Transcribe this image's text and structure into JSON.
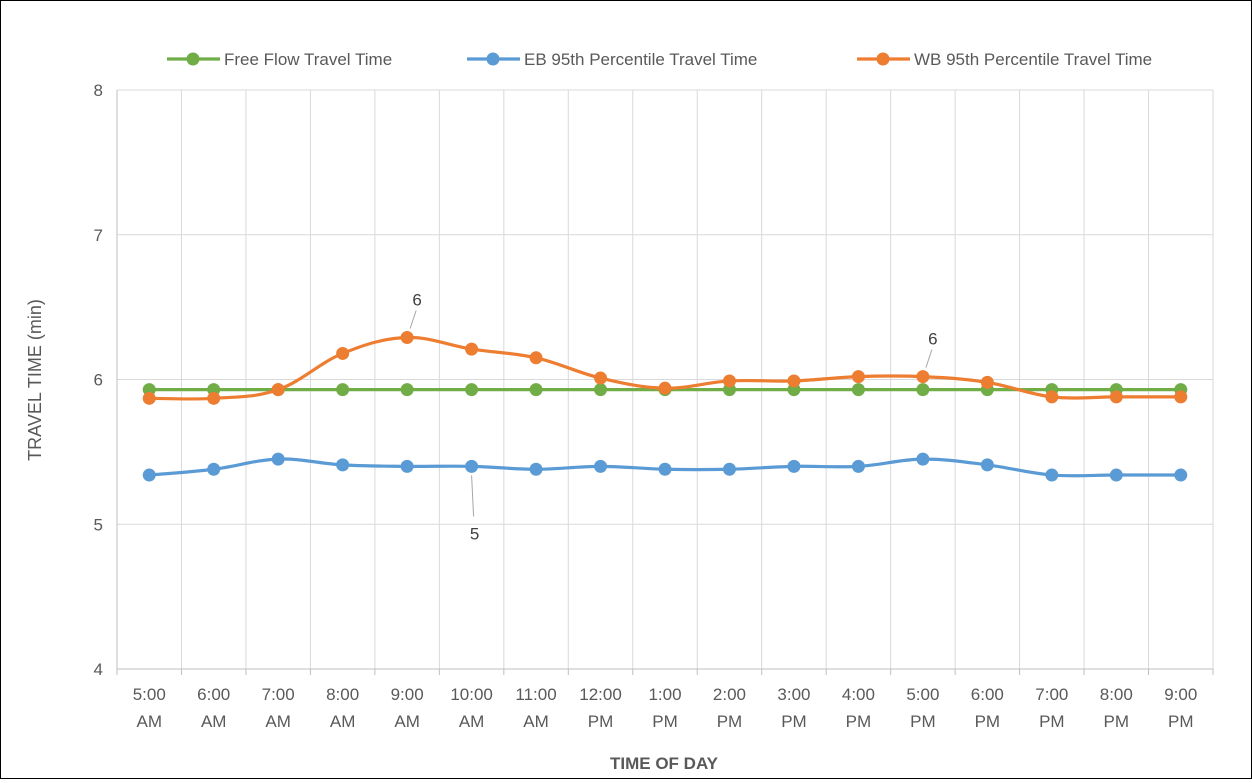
{
  "chart_data": {
    "type": "line",
    "title": "",
    "xlabel": "TIME OF DAY",
    "ylabel": "TRAVEL TIME (min)",
    "ylim": [
      4,
      8
    ],
    "yticks": [
      "4",
      "5",
      "6",
      "7",
      "8"
    ],
    "grid": true,
    "legend_position": "top",
    "categories": [
      [
        "5:00",
        "AM"
      ],
      [
        "6:00",
        "AM"
      ],
      [
        "7:00",
        "AM"
      ],
      [
        "8:00",
        "AM"
      ],
      [
        "9:00",
        "AM"
      ],
      [
        "10:00",
        "AM"
      ],
      [
        "11:00",
        "AM"
      ],
      [
        "12:00",
        "PM"
      ],
      [
        "1:00",
        "PM"
      ],
      [
        "2:00",
        "PM"
      ],
      [
        "3:00",
        "PM"
      ],
      [
        "4:00",
        "PM"
      ],
      [
        "5:00",
        "PM"
      ],
      [
        "6:00",
        "PM"
      ],
      [
        "7:00",
        "PM"
      ],
      [
        "8:00",
        "PM"
      ],
      [
        "9:00",
        "PM"
      ]
    ],
    "series": [
      {
        "name": "Free Flow Travel Time",
        "color": "#70ad47",
        "values": [
          5.93,
          5.93,
          5.93,
          5.93,
          5.93,
          5.93,
          5.93,
          5.93,
          5.93,
          5.93,
          5.93,
          5.93,
          5.93,
          5.93,
          5.93,
          5.93,
          5.93
        ]
      },
      {
        "name": "EB 95th Percentile Travel Time",
        "color": "#5b9bd5",
        "values": [
          5.34,
          5.38,
          5.45,
          5.41,
          5.4,
          5.4,
          5.38,
          5.4,
          5.38,
          5.38,
          5.4,
          5.4,
          5.45,
          5.41,
          5.34,
          5.34,
          5.34
        ]
      },
      {
        "name": "WB 95th Percentile Travel Time",
        "color": "#ed7d31",
        "values": [
          5.87,
          5.87,
          5.93,
          6.18,
          6.29,
          6.21,
          6.15,
          6.01,
          5.94,
          5.99,
          5.99,
          6.02,
          6.02,
          5.98,
          5.88,
          5.88,
          5.88
        ]
      }
    ],
    "annotations": [
      {
        "series": 2,
        "index": 4,
        "text": "6",
        "placement": "above"
      },
      {
        "series": 2,
        "index": 12,
        "text": "6",
        "placement": "above"
      },
      {
        "series": 1,
        "index": 5,
        "text": "5",
        "placement": "below"
      }
    ]
  }
}
